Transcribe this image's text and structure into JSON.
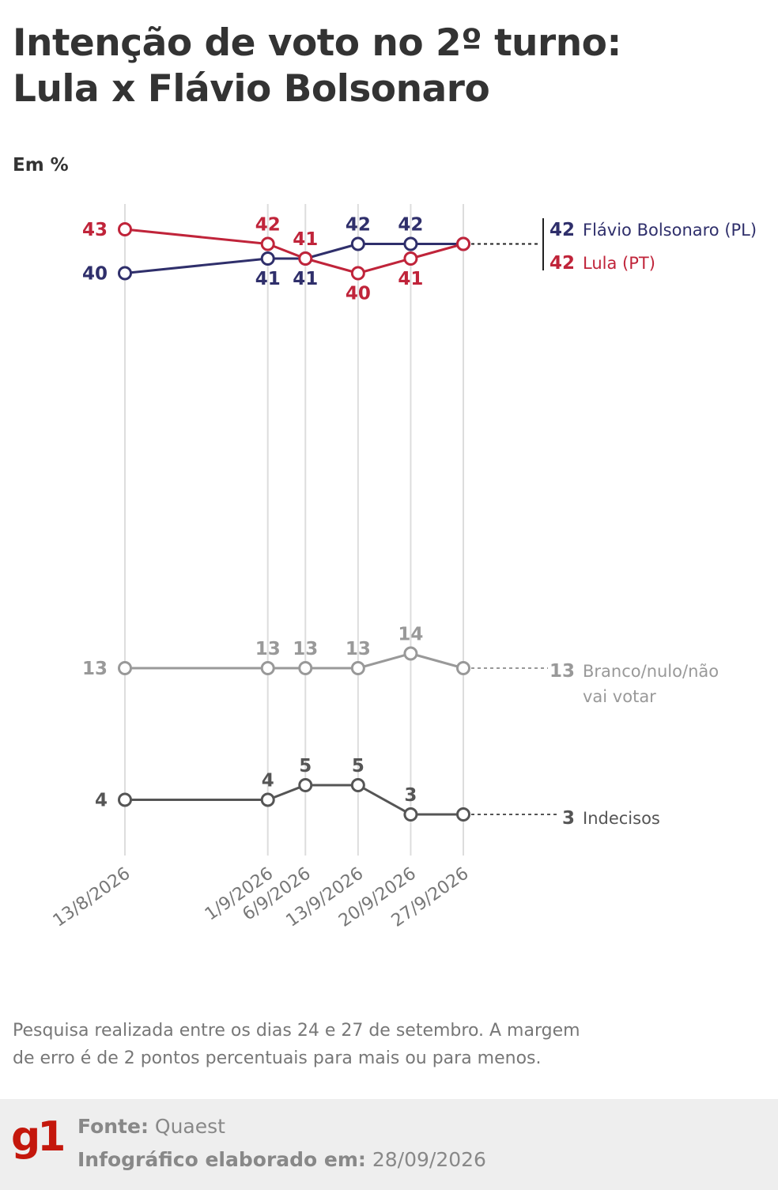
{
  "header": {
    "title_line1": "Intenção de voto no 2º turno:",
    "title_line2": "Lula x Flávio Bolsonaro",
    "unit": "Em %"
  },
  "chart_data": {
    "type": "line",
    "title": "Intenção de voto no 2º turno: Lula x Flávio Bolsonaro",
    "ylabel": "Em %",
    "x": [
      "13/8/2026",
      "1/9/2026",
      "6/9/2026",
      "13/9/2026",
      "20/9/2026",
      "27/9/2026"
    ],
    "series": [
      {
        "name": "Flávio Bolsonaro (PL)",
        "values": [
          40,
          41,
          41,
          42,
          42,
          42
        ],
        "color": "#2f2f6b"
      },
      {
        "name": "Lula (PT)",
        "values": [
          43,
          42,
          41,
          40,
          41,
          42
        ],
        "color": "#c0243a"
      },
      {
        "name": "Branco/nulo/não vai votar",
        "values": [
          13,
          13,
          13,
          13,
          14,
          13
        ],
        "color": "#999999"
      },
      {
        "name": "Indecisos",
        "values": [
          4,
          4,
          5,
          5,
          3,
          3
        ],
        "color": "#555555"
      }
    ],
    "end_labels": [
      {
        "value": "42",
        "text": "Flávio Bolsonaro (PL)"
      },
      {
        "value": "42",
        "text": "Lula (PT)"
      },
      {
        "value": "13",
        "text": "Branco/nulo/não",
        "text2": "vai votar"
      },
      {
        "value": "3",
        "text": "Indecisos"
      }
    ],
    "grid": "vertical lines at each survey date",
    "legend": "direct labels at right"
  },
  "footnote": {
    "line1": "Pesquisa realizada entre os dias 24 e 27 de setembro. A margem",
    "line2": "de erro é de 2 pontos percentuais para mais ou para menos."
  },
  "footer": {
    "logo": "g1",
    "source_label": "Fonte:",
    "source_value": "Quaest",
    "date_label": "Infográfico elaborado em:",
    "date_value": "28/09/2026"
  }
}
